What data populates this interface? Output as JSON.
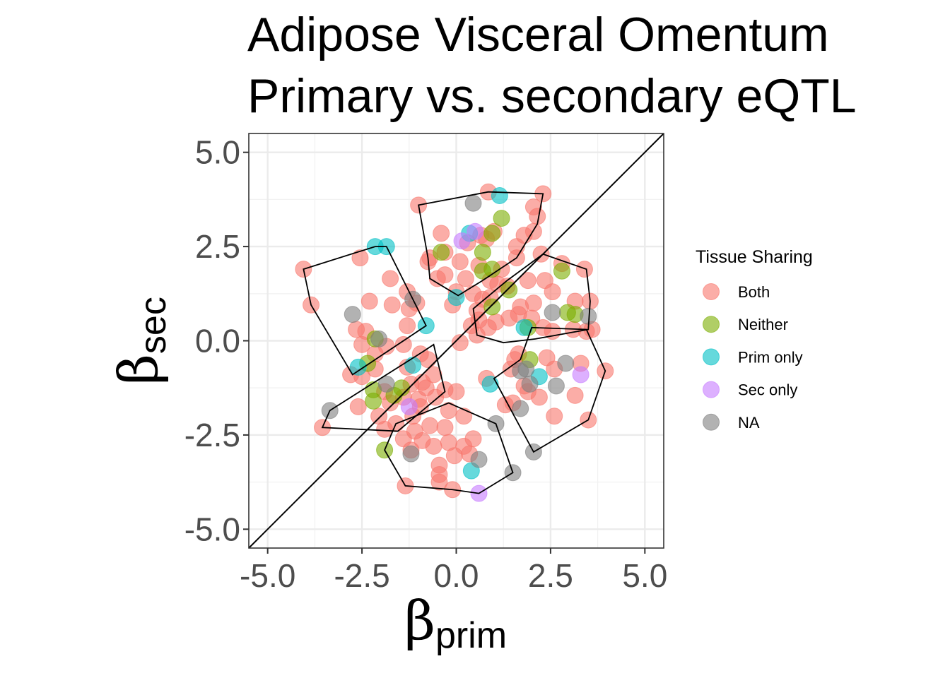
{
  "chart_data": {
    "type": "scatter",
    "title": [
      "Adipose Visceral Omentum",
      "Primary vs. secondary eQTL"
    ],
    "xlabel": {
      "symbol": "β",
      "subscript": "prim"
    },
    "ylabel": {
      "symbol": "β",
      "subscript": "sec"
    },
    "xlim": [
      -5.5,
      5.5
    ],
    "ylim": [
      -5.5,
      5.5
    ],
    "xticks": [
      -5.0,
      -2.5,
      0.0,
      2.5,
      5.0
    ],
    "yticks": [
      -5.0,
      -2.5,
      0.0,
      2.5,
      5.0
    ],
    "xtick_labels": [
      "-5.0",
      "-2.5",
      "0.0",
      "2.5",
      "5.0"
    ],
    "ytick_labels": [
      "-5.0",
      "-2.5",
      "0.0",
      "2.5",
      "5.0"
    ],
    "grid": true,
    "reference_line": "y = x",
    "legend": {
      "title": "Tissue Sharing",
      "placement": "right",
      "entries": [
        {
          "name": "Both",
          "color": "#F8766D"
        },
        {
          "name": "Neither",
          "color": "#7CAE00"
        },
        {
          "name": "Prim only",
          "color": "#00BFC4"
        },
        {
          "name": "Sec only",
          "color": "#C77CFF"
        },
        {
          "name": "NA",
          "color": "#7F7F7F"
        }
      ]
    },
    "series": [
      {
        "name": "Both",
        "color": "#F8766D",
        "points": [
          [
            0.85,
            3.95
          ],
          [
            2.3,
            3.9
          ],
          [
            -1.0,
            3.6
          ],
          [
            2.05,
            3.55
          ],
          [
            2.15,
            3.3
          ],
          [
            1.0,
            2.9
          ],
          [
            0.65,
            2.8
          ],
          [
            -0.4,
            2.85
          ],
          [
            0.3,
            2.6
          ],
          [
            0.8,
            2.7
          ],
          [
            1.8,
            2.8
          ],
          [
            2.05,
            2.9
          ],
          [
            -0.3,
            2.35
          ],
          [
            1.6,
            2.5
          ],
          [
            2.25,
            2.3
          ],
          [
            -0.75,
            2.1
          ],
          [
            -0.7,
            2.2
          ],
          [
            0.1,
            2.1
          ],
          [
            0.6,
            2.0
          ],
          [
            1.2,
            1.9
          ],
          [
            1.6,
            2.2
          ],
          [
            1.9,
            1.6
          ],
          [
            -0.3,
            1.75
          ],
          [
            0.25,
            1.65
          ],
          [
            -0.5,
            1.65
          ],
          [
            0.9,
            1.6
          ],
          [
            1.35,
            1.45
          ],
          [
            0.45,
            1.25
          ],
          [
            0.0,
            1.3
          ],
          [
            0.7,
            1.1
          ],
          [
            1.1,
            1.5
          ],
          [
            2.8,
            2.05
          ],
          [
            3.4,
            1.9
          ],
          [
            2.35,
            1.6
          ],
          [
            2.55,
            1.3
          ],
          [
            3.55,
            1.05
          ],
          [
            3.15,
            1.05
          ],
          [
            2.05,
            1.0
          ],
          [
            1.7,
            0.9
          ],
          [
            1.4,
            0.6
          ],
          [
            1.05,
            0.5
          ],
          [
            0.85,
            0.35
          ],
          [
            0.4,
            0.4
          ],
          [
            0.55,
            0.15
          ],
          [
            1.65,
            0.7
          ],
          [
            2.0,
            0.6
          ],
          [
            2.3,
            0.35
          ],
          [
            2.55,
            0.25
          ],
          [
            3.45,
            0.25
          ],
          [
            3.1,
            0.3
          ],
          [
            3.6,
            0.3
          ],
          [
            0.55,
            0.8
          ],
          [
            -4.05,
            1.9
          ],
          [
            -3.85,
            0.95
          ],
          [
            -1.75,
            1.65
          ],
          [
            -1.3,
            1.3
          ],
          [
            -1.05,
            1.0
          ],
          [
            -1.25,
            0.85
          ],
          [
            -1.7,
            0.95
          ],
          [
            -2.3,
            1.05
          ],
          [
            -2.55,
            2.2
          ],
          [
            -2.65,
            0.3
          ],
          [
            -2.4,
            0.25
          ],
          [
            -1.3,
            0.4
          ],
          [
            -1.85,
            -0.15
          ],
          [
            -2.5,
            -0.1
          ],
          [
            -2.15,
            -0.35
          ],
          [
            -1.4,
            -0.1
          ],
          [
            -0.95,
            -0.35
          ],
          [
            -0.75,
            -0.5
          ],
          [
            -1.3,
            -0.7
          ],
          [
            -2.15,
            -0.75
          ],
          [
            -2.5,
            -0.95
          ],
          [
            -2.8,
            -0.9
          ],
          [
            -1.9,
            -1.35
          ],
          [
            -1.2,
            -1.15
          ],
          [
            -0.9,
            -1.1
          ],
          [
            -0.6,
            -0.9
          ],
          [
            -0.8,
            -1.25
          ],
          [
            -1.0,
            -1.55
          ],
          [
            -1.4,
            -1.5
          ],
          [
            -1.75,
            -1.65
          ],
          [
            -2.6,
            -1.75
          ],
          [
            -2.05,
            -2.0
          ],
          [
            -1.6,
            -2.2
          ],
          [
            -1.15,
            -2.0
          ],
          [
            -0.95,
            -1.75
          ],
          [
            -0.55,
            -1.5
          ],
          [
            -0.3,
            -1.3
          ],
          [
            0.0,
            -1.35
          ],
          [
            -0.2,
            -1.85
          ],
          [
            0.2,
            -2.0
          ],
          [
            -0.3,
            -2.3
          ],
          [
            -0.7,
            -2.25
          ],
          [
            -1.1,
            -2.4
          ],
          [
            -1.4,
            -2.6
          ],
          [
            -1.9,
            -2.35
          ],
          [
            -3.55,
            -2.3
          ],
          [
            -0.9,
            -2.65
          ],
          [
            -0.6,
            -2.8
          ],
          [
            -0.2,
            -2.7
          ],
          [
            0.2,
            -2.8
          ],
          [
            0.45,
            -2.6
          ],
          [
            -1.2,
            -2.9
          ],
          [
            -0.05,
            -3.05
          ],
          [
            0.35,
            -3.0
          ],
          [
            -0.45,
            -3.3
          ],
          [
            -0.45,
            -3.55
          ],
          [
            -1.35,
            -3.85
          ],
          [
            -0.1,
            -3.95
          ],
          [
            -0.45,
            -3.75
          ],
          [
            0.8,
            -1.0
          ],
          [
            1.45,
            -0.75
          ],
          [
            1.8,
            -1.2
          ],
          [
            1.5,
            -1.65
          ],
          [
            1.3,
            -1.7
          ],
          [
            2.2,
            -1.5
          ],
          [
            2.6,
            -2.0
          ],
          [
            3.15,
            -1.45
          ],
          [
            3.5,
            -2.1
          ],
          [
            3.95,
            -0.8
          ],
          [
            3.3,
            -0.6
          ],
          [
            2.4,
            -0.45
          ],
          [
            2.6,
            -0.75
          ],
          [
            1.9,
            -1.35
          ],
          [
            1.65,
            -0.35
          ],
          [
            1.55,
            -0.5
          ],
          [
            0.1,
            -0.05
          ],
          [
            0.6,
            0.55
          ],
          [
            -0.1,
            0.95
          ],
          [
            0.9,
            1.15
          ]
        ]
      },
      {
        "name": "Neither",
        "color": "#7CAE00",
        "points": [
          [
            1.2,
            3.25
          ],
          [
            0.95,
            2.85
          ],
          [
            -0.4,
            2.35
          ],
          [
            0.7,
            2.35
          ],
          [
            0.7,
            1.85
          ],
          [
            0.95,
            1.9
          ],
          [
            1.4,
            1.35
          ],
          [
            0.95,
            0.9
          ],
          [
            2.8,
            1.85
          ],
          [
            2.95,
            0.75
          ],
          [
            3.15,
            0.7
          ],
          [
            1.9,
            0.35
          ],
          [
            1.95,
            -0.5
          ],
          [
            -2.15,
            0.05
          ],
          [
            -2.35,
            -0.6
          ],
          [
            -2.2,
            -1.3
          ],
          [
            -1.45,
            -1.25
          ],
          [
            -1.65,
            -1.45
          ],
          [
            -2.2,
            -1.6
          ],
          [
            -1.9,
            -2.9
          ]
        ]
      },
      {
        "name": "Prim only",
        "color": "#00BFC4",
        "points": [
          [
            1.15,
            3.85
          ],
          [
            0.35,
            2.85
          ],
          [
            -2.15,
            2.5
          ],
          [
            -1.85,
            2.5
          ],
          [
            0.0,
            1.15
          ],
          [
            -0.8,
            0.4
          ],
          [
            -2.6,
            -0.7
          ],
          [
            -1.15,
            -0.65
          ],
          [
            0.9,
            -1.15
          ],
          [
            2.2,
            -0.95
          ],
          [
            0.4,
            -3.45
          ],
          [
            1.8,
            0.35
          ]
        ]
      },
      {
        "name": "Sec only",
        "color": "#C77CFF",
        "points": [
          [
            0.5,
            2.9
          ],
          [
            0.15,
            2.65
          ],
          [
            3.3,
            -0.9
          ],
          [
            -1.25,
            -1.75
          ],
          [
            0.6,
            -4.05
          ]
        ]
      },
      {
        "name": "NA",
        "color": "#7F7F7F",
        "points": [
          [
            0.45,
            3.65
          ],
          [
            -1.15,
            1.1
          ],
          [
            -2.75,
            0.7
          ],
          [
            -2.05,
            0.05
          ],
          [
            -1.85,
            -1.15
          ],
          [
            -3.35,
            -1.85
          ],
          [
            -1.2,
            -3.0
          ],
          [
            1.05,
            -2.2
          ],
          [
            1.5,
            -3.5
          ],
          [
            0.6,
            -3.15
          ],
          [
            2.05,
            -2.95
          ],
          [
            1.7,
            -1.8
          ],
          [
            1.7,
            -0.8
          ],
          [
            1.95,
            -1.15
          ],
          [
            2.65,
            -1.2
          ],
          [
            2.9,
            -0.6
          ],
          [
            2.55,
            0.75
          ],
          [
            3.5,
            0.65
          ],
          [
            1.85,
            -0.75
          ]
        ]
      }
    ],
    "hulls": [
      [
        [
          -1.0,
          3.6
        ],
        [
          0.85,
          3.95
        ],
        [
          2.3,
          3.9
        ],
        [
          2.15,
          3.1
        ],
        [
          1.6,
          2.2
        ],
        [
          0.7,
          1.6
        ],
        [
          0.05,
          1.2
        ],
        [
          -0.7,
          1.65
        ],
        [
          -0.75,
          2.2
        ]
      ],
      [
        [
          -4.05,
          1.9
        ],
        [
          -2.15,
          2.5
        ],
        [
          -1.85,
          2.5
        ],
        [
          -0.8,
          0.4
        ],
        [
          -2.75,
          -0.9
        ],
        [
          -3.85,
          0.95
        ]
      ],
      [
        [
          1.35,
          1.6
        ],
        [
          2.3,
          2.3
        ],
        [
          3.45,
          1.9
        ],
        [
          3.55,
          1.05
        ],
        [
          3.5,
          0.3
        ],
        [
          2.1,
          0.05
        ],
        [
          1.25,
          -0.05
        ],
        [
          0.55,
          0.15
        ],
        [
          0.45,
          0.85
        ]
      ],
      [
        [
          -0.6,
          -0.1
        ],
        [
          -0.3,
          -1.35
        ],
        [
          -1.55,
          -2.4
        ],
        [
          -3.55,
          -2.3
        ],
        [
          -3.35,
          -1.85
        ],
        [
          -0.9,
          -0.3
        ]
      ],
      [
        [
          -0.2,
          -1.65
        ],
        [
          1.05,
          -2.2
        ],
        [
          1.5,
          -3.5
        ],
        [
          0.6,
          -4.05
        ],
        [
          -0.1,
          -3.95
        ],
        [
          -1.35,
          -3.85
        ],
        [
          -1.9,
          -2.9
        ],
        [
          -1.6,
          -2.2
        ]
      ],
      [
        [
          2.0,
          0.35
        ],
        [
          3.45,
          0.3
        ],
        [
          3.95,
          -0.8
        ],
        [
          3.5,
          -2.1
        ],
        [
          2.05,
          -2.95
        ],
        [
          1.0,
          -1.0
        ],
        [
          1.7,
          -0.5
        ]
      ]
    ]
  }
}
